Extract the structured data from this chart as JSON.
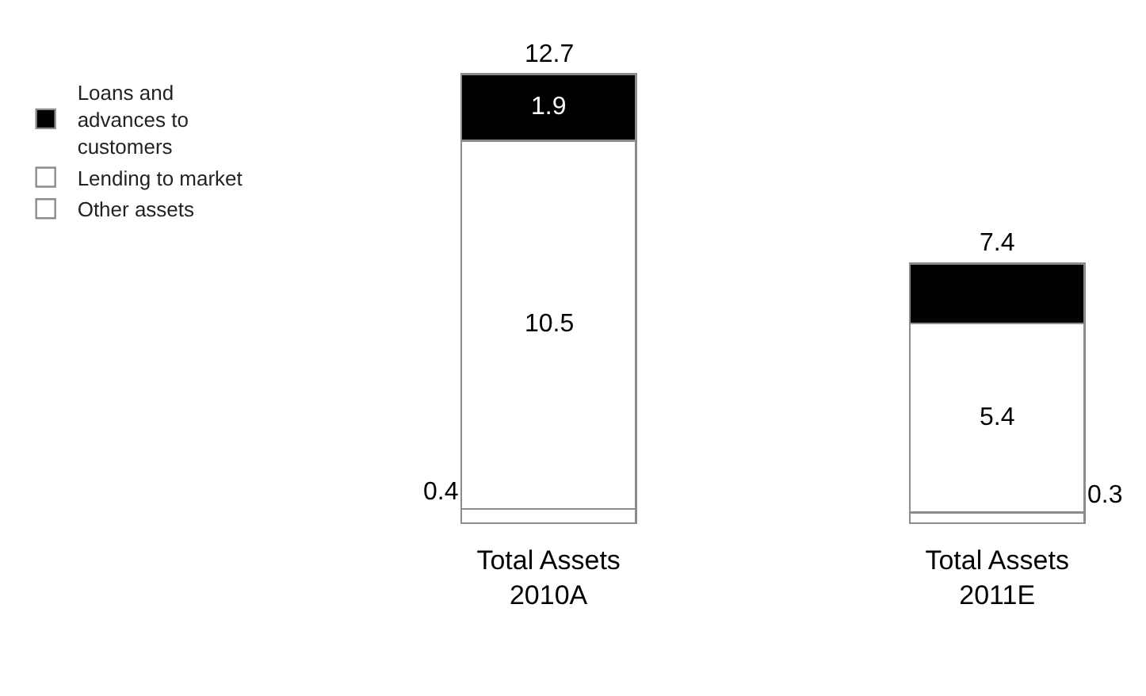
{
  "chart_data": {
    "type": "bar",
    "stacked": true,
    "categories": [
      "Total Assets 2010A",
      "Total Assets 2011E"
    ],
    "series": [
      {
        "name": "Other assets",
        "color": "#ffffff",
        "values": [
          0.4,
          0.3
        ],
        "value_labels": [
          "0.4",
          "0.3"
        ]
      },
      {
        "name": "Lending to market",
        "color": "#ffffff",
        "values": [
          10.5,
          5.4
        ],
        "value_labels": [
          "10.5",
          "5.4"
        ]
      },
      {
        "name": "Loans and advances to customers",
        "color": "#000000",
        "values": [
          1.9,
          1.7
        ],
        "value_labels": [
          "1.9",
          null
        ]
      }
    ],
    "totals": [
      "12.7",
      "7.4"
    ],
    "legend": "top left"
  }
}
